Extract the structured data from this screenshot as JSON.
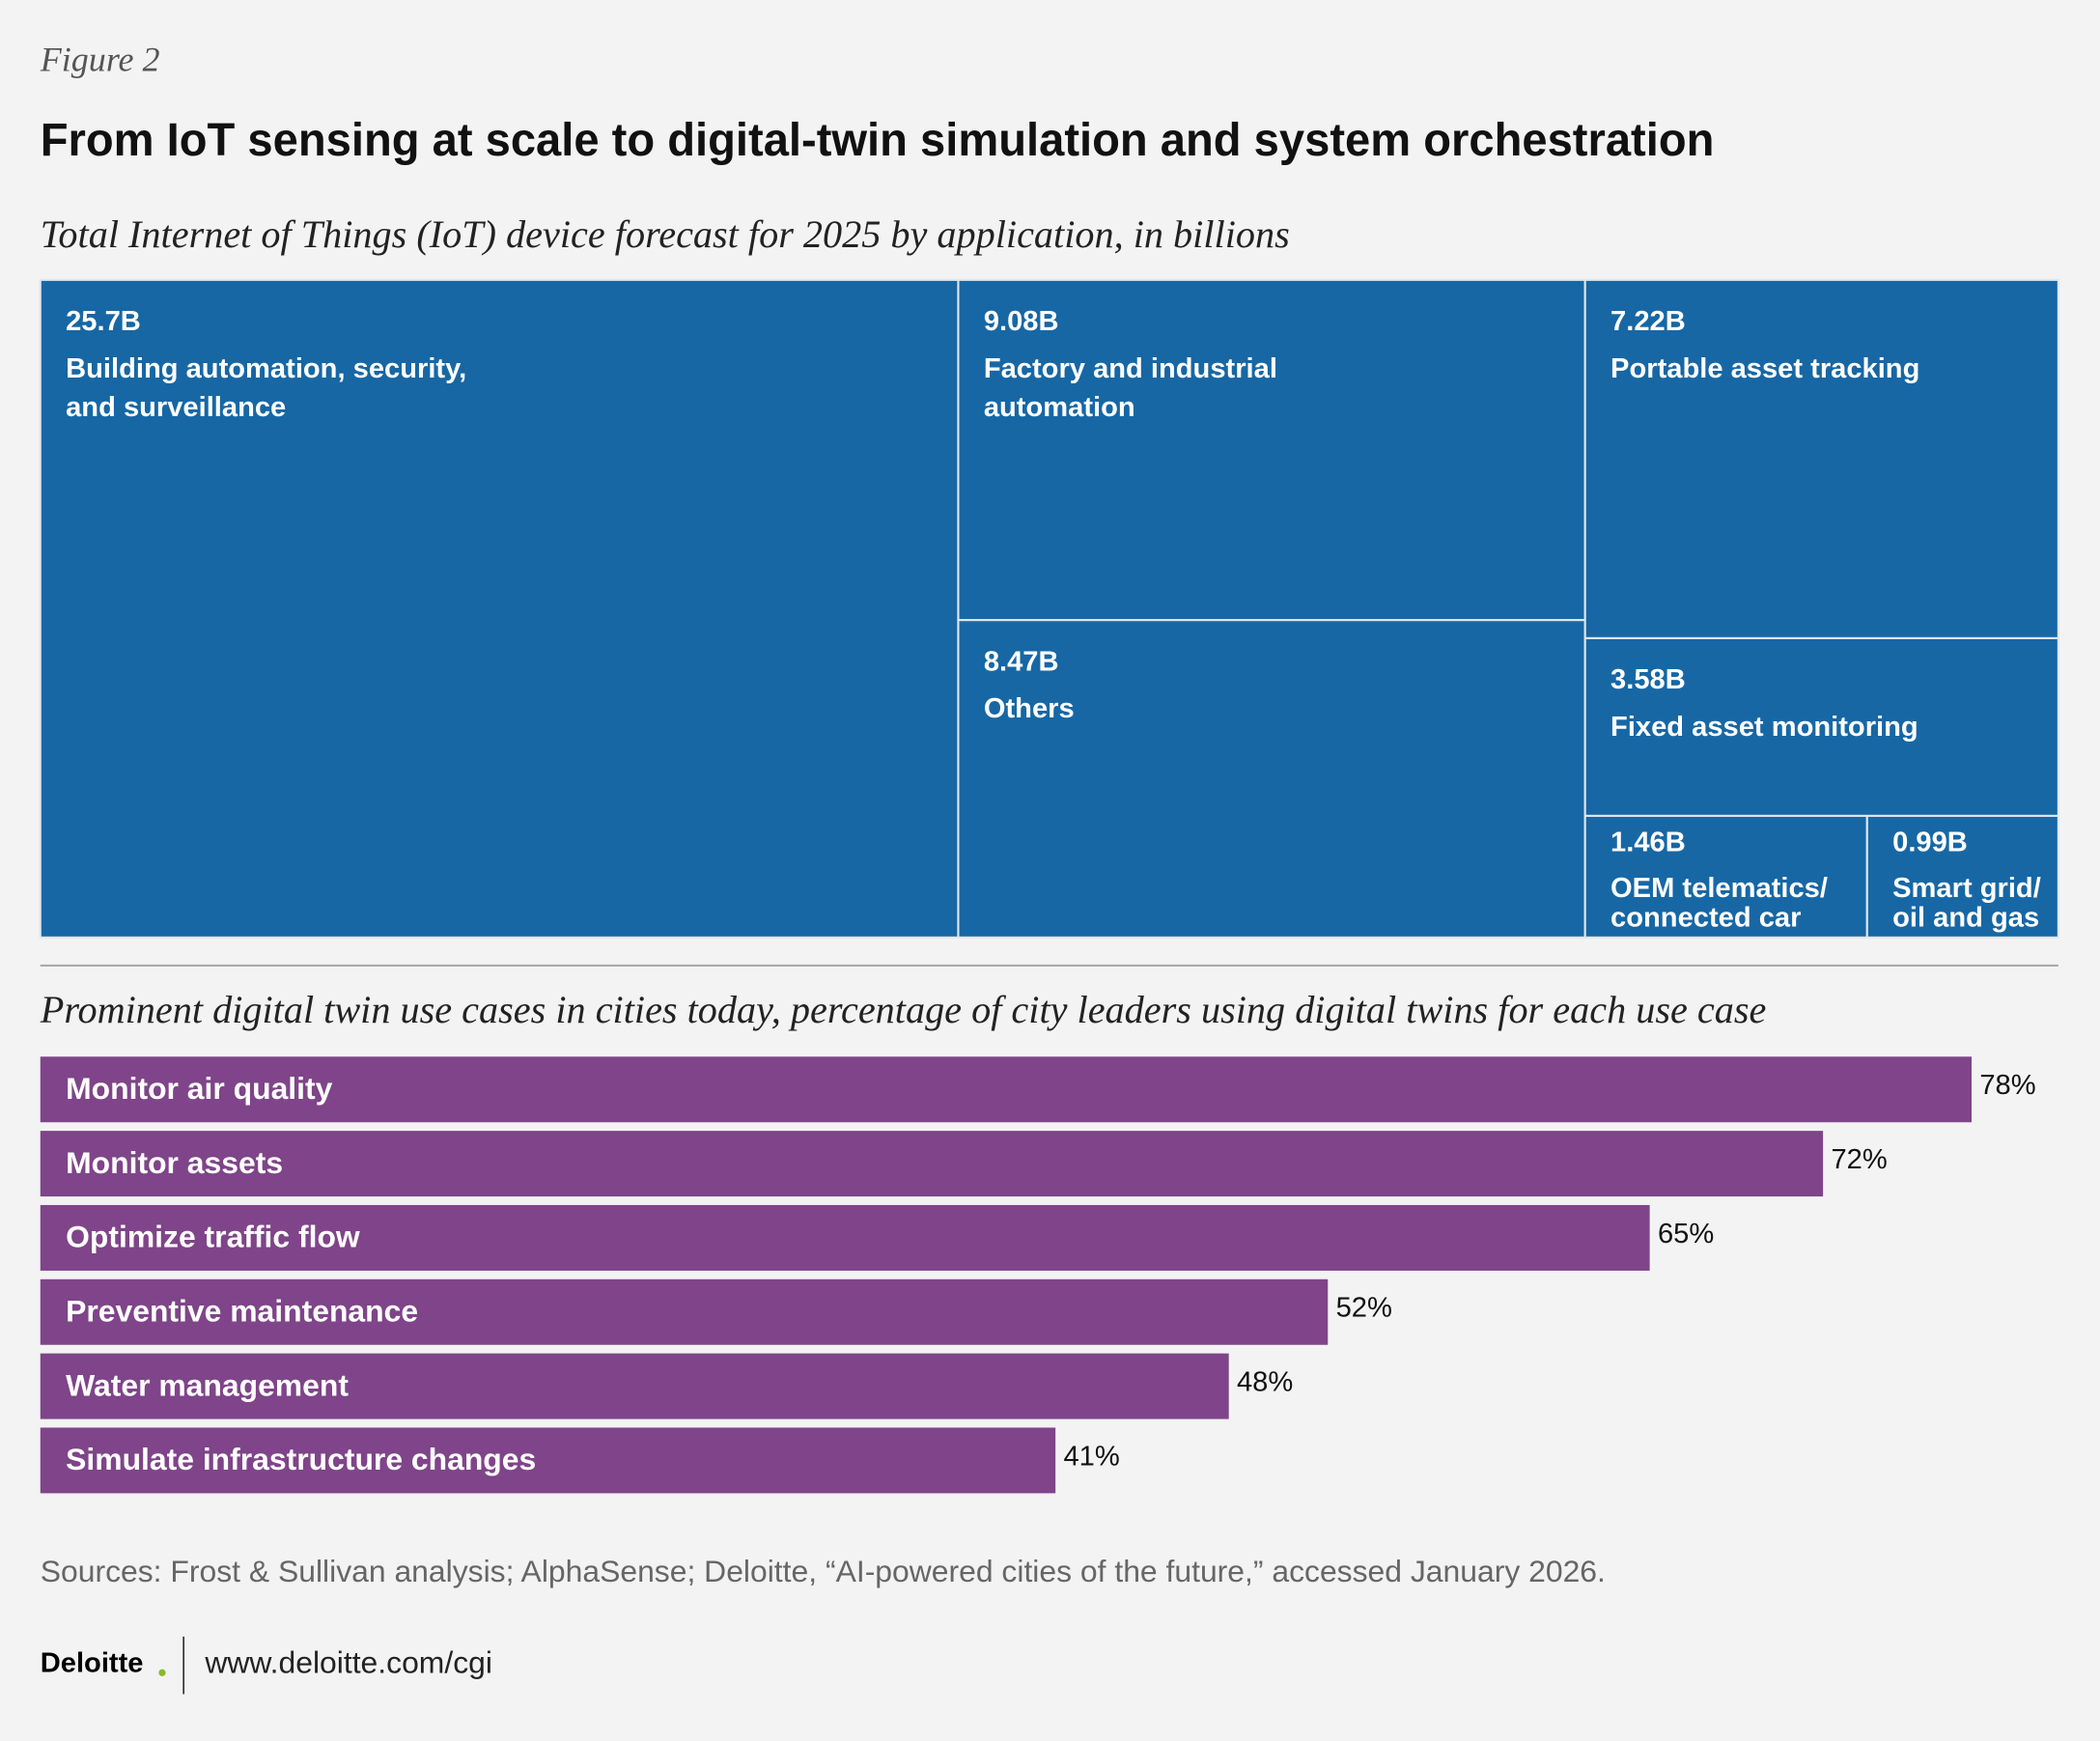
{
  "figure_label": "Figure 2",
  "title": "From IoT sensing at scale to digital-twin simulation and system orchestration",
  "chart_data": [
    {
      "type": "treemap",
      "title": "Total Internet of Things (IoT) device forecast for 2025 by application, in billions",
      "categories": [
        "Building automation, security, and surveillance",
        "Factory and industrial automation",
        "Portable asset tracking",
        "Others",
        "Fixed asset monitoring",
        "OEM telematics/ connected car",
        "Smart grid/ oil and gas"
      ],
      "values": [
        25.7,
        9.08,
        7.22,
        8.47,
        3.58,
        1.46,
        0.99
      ],
      "value_labels": [
        "25.7B",
        "9.08B",
        "7.22B",
        "8.47B",
        "3.58B",
        "1.46B",
        "0.99B"
      ],
      "color": "#1767a5"
    },
    {
      "type": "bar",
      "orientation": "horizontal",
      "title": "Prominent digital twin use cases in cities today, percentage of city leaders using digital twins for each use case",
      "categories": [
        "Monitor air quality",
        "Monitor assets",
        "Optimize traffic flow",
        "Preventive maintenance",
        "Water management",
        "Simulate infrastructure changes"
      ],
      "values": [
        78,
        72,
        65,
        52,
        48,
        41
      ],
      "value_labels": [
        "78%",
        "72%",
        "65%",
        "52%",
        "48%",
        "41%"
      ],
      "color": "#7f4489"
    }
  ],
  "footer": {
    "sources": "Sources: Frost & Sullivan analysis; AlphaSense; Deloitte, “AI-powered cities of the future,” accessed January 2026.",
    "brand": "Deloitte",
    "url": "www.deloitte.com/cgi"
  }
}
